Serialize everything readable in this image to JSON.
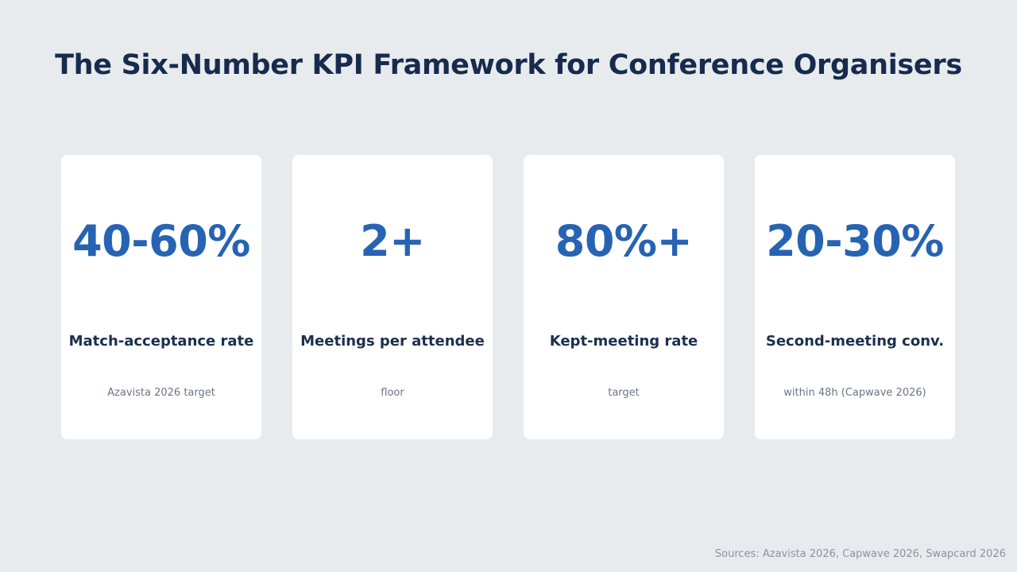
{
  "title": "The Six-Number KPI Framework for Conference Organisers",
  "cards": [
    {
      "value": "40-60%",
      "label": "Match-acceptance rate",
      "note": "Azavista 2026 target"
    },
    {
      "value": "2+",
      "label": "Meetings per attendee",
      "note": "floor"
    },
    {
      "value": "80%+",
      "label": "Kept-meeting rate",
      "note": "target"
    },
    {
      "value": "20-30%",
      "label": "Second-meeting conv.",
      "note": "within 48h (Capwave 2026)"
    }
  ],
  "sources": "Sources: Azavista 2026, Capwave 2026, Swapcard 2026",
  "colors": {
    "background": "#e8ebee",
    "title": "#162b4d",
    "value": "#2763b3",
    "label": "#1b2f4f",
    "note": "#6b7585"
  }
}
